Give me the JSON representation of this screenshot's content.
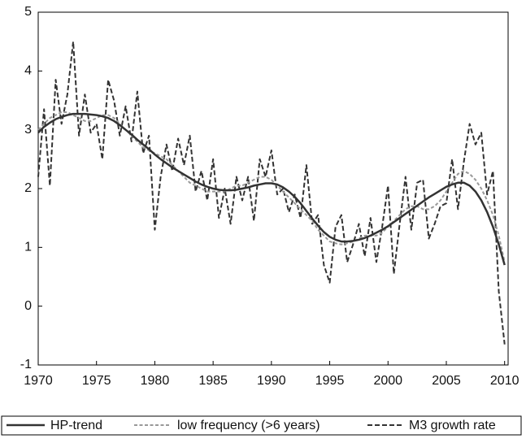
{
  "chart_data": {
    "type": "line",
    "x": [
      1970,
      1970.5,
      1971,
      1971.5,
      1972,
      1972.5,
      1973,
      1973.5,
      1974,
      1974.5,
      1975,
      1975.5,
      1976,
      1976.5,
      1977,
      1977.5,
      1978,
      1978.5,
      1979,
      1979.5,
      1980,
      1980.5,
      1981,
      1981.5,
      1982,
      1982.5,
      1983,
      1983.5,
      1984,
      1984.5,
      1985,
      1985.5,
      1986,
      1986.5,
      1987,
      1987.5,
      1988,
      1988.5,
      1989,
      1989.5,
      1990,
      1990.5,
      1991,
      1991.5,
      1992,
      1992.5,
      1993,
      1993.5,
      1994,
      1994.5,
      1995,
      1995.5,
      1996,
      1996.5,
      1997,
      1997.5,
      1998,
      1998.5,
      1999,
      1999.5,
      2000,
      2000.5,
      2001,
      2001.5,
      2002,
      2002.5,
      2003,
      2003.5,
      2004,
      2004.5,
      2005,
      2005.5,
      2006,
      2006.5,
      2007,
      2007.5,
      2008,
      2008.5,
      2009,
      2009.5,
      2010
    ],
    "series": [
      {
        "name": "HP-trend",
        "color": "#333333",
        "line_style": "solid",
        "width": 2.5,
        "values": [
          2.95,
          3.05,
          3.12,
          3.18,
          3.22,
          3.25,
          3.27,
          3.27,
          3.27,
          3.26,
          3.25,
          3.23,
          3.2,
          3.15,
          3.08,
          3.0,
          2.92,
          2.83,
          2.75,
          2.67,
          2.58,
          2.5,
          2.43,
          2.36,
          2.3,
          2.24,
          2.18,
          2.12,
          2.07,
          2.03,
          2.0,
          1.98,
          1.97,
          1.97,
          1.98,
          2.0,
          2.02,
          2.05,
          2.07,
          2.09,
          2.09,
          2.07,
          2.02,
          1.95,
          1.86,
          1.75,
          1.62,
          1.49,
          1.37,
          1.26,
          1.18,
          1.13,
          1.1,
          1.1,
          1.11,
          1.13,
          1.16,
          1.2,
          1.25,
          1.3,
          1.36,
          1.43,
          1.5,
          1.57,
          1.64,
          1.71,
          1.78,
          1.85,
          1.91,
          1.97,
          2.03,
          2.07,
          2.1,
          2.1,
          2.05,
          1.95,
          1.8,
          1.6,
          1.35,
          1.05,
          0.7
        ]
      },
      {
        "name": "low frequency (>6 years)",
        "color": "#999999",
        "line_style": "dashed",
        "width": 2,
        "values": [
          3.0,
          3.1,
          3.2,
          3.25,
          3.3,
          3.3,
          3.25,
          3.2,
          3.15,
          3.15,
          3.2,
          3.25,
          3.25,
          3.2,
          3.1,
          3.0,
          2.9,
          2.8,
          2.7,
          2.65,
          2.6,
          2.55,
          2.5,
          2.4,
          2.3,
          2.2,
          2.1,
          2.05,
          2.0,
          1.95,
          1.95,
          1.95,
          1.95,
          2.0,
          2.05,
          2.05,
          2.1,
          2.15,
          2.2,
          2.2,
          2.15,
          2.05,
          1.95,
          1.85,
          1.75,
          1.65,
          1.55,
          1.45,
          1.3,
          1.2,
          1.1,
          1.07,
          1.05,
          1.07,
          1.1,
          1.15,
          1.2,
          1.2,
          1.2,
          1.25,
          1.35,
          1.45,
          1.55,
          1.65,
          1.7,
          1.7,
          1.65,
          1.65,
          1.7,
          1.8,
          1.95,
          2.1,
          2.25,
          2.3,
          2.25,
          2.15,
          2.0,
          1.8,
          1.55,
          1.2,
          0.75
        ]
      },
      {
        "name": "M3 growth rate",
        "color": "#333333",
        "line_style": "dashed",
        "width": 2,
        "values": [
          2.2,
          3.35,
          2.05,
          3.85,
          3.1,
          3.6,
          4.5,
          2.9,
          3.6,
          2.95,
          3.1,
          2.5,
          3.85,
          3.5,
          2.9,
          3.4,
          2.8,
          3.65,
          2.6,
          2.9,
          1.3,
          2.2,
          2.75,
          2.3,
          2.85,
          2.4,
          2.9,
          1.95,
          2.3,
          1.8,
          2.5,
          1.5,
          2.0,
          1.4,
          2.2,
          1.8,
          2.2,
          1.45,
          2.5,
          2.2,
          2.65,
          1.9,
          2.0,
          1.6,
          1.9,
          1.5,
          2.4,
          1.4,
          1.55,
          0.7,
          0.4,
          1.35,
          1.55,
          0.75,
          1.05,
          1.4,
          0.85,
          1.5,
          0.75,
          1.35,
          2.05,
          0.55,
          1.4,
          2.2,
          1.3,
          2.1,
          2.15,
          1.15,
          1.4,
          1.7,
          1.75,
          2.5,
          1.65,
          2.45,
          3.1,
          2.75,
          2.95,
          1.9,
          2.3,
          0.25,
          -0.65
        ]
      }
    ],
    "xlim": [
      1970,
      2010.3
    ],
    "xticks": [
      1970,
      1975,
      1980,
      1985,
      1990,
      1995,
      2000,
      2005,
      2010
    ],
    "ylim": [
      -1,
      5
    ],
    "yticks": [
      -1,
      0,
      1,
      2,
      3,
      4,
      5
    ],
    "grid": false
  }
}
